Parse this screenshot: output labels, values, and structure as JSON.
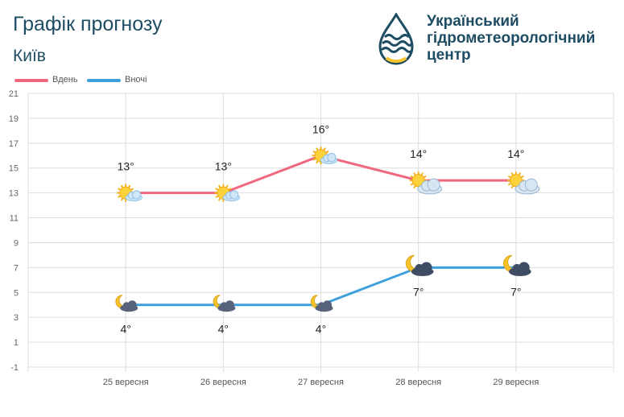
{
  "header": {
    "title": "Графік прогнозу",
    "city": "Київ"
  },
  "logo": {
    "line1": "Український",
    "line2": "гідрометеорологічний",
    "line3": "центр"
  },
  "colors": {
    "title": "#1e4d63",
    "day": "#f0687f",
    "night": "#3ea1de",
    "grid": "#dddddd",
    "logo_blue": "#1e4d63",
    "logo_yellow": "#f5c32c"
  },
  "chart_data": {
    "type": "line",
    "title": "Графік прогнозу",
    "xlabel": "",
    "ylabel": "",
    "categories": [
      "25 вересня",
      "26 вересня",
      "27 вересня",
      "28 вересня",
      "29 вересня"
    ],
    "ylim": [
      -1,
      21
    ],
    "yticks": [
      "21",
      "19",
      "17",
      "15",
      "13",
      "11",
      "9",
      "7",
      "5",
      "3",
      "1",
      "-1"
    ],
    "grid": true,
    "legend_position": "top-left",
    "series": [
      {
        "name": "Вдень",
        "values": [
          13,
          13,
          16,
          14,
          14
        ],
        "labels": [
          "13°",
          "13°",
          "16°",
          "14°",
          "14°"
        ],
        "icons": [
          "sun-cloud-icon",
          "sun-cloud-icon",
          "sun-cloud-icon",
          "sun-cloudy-icon",
          "sun-cloudy-icon"
        ]
      },
      {
        "name": "Вночі",
        "values": [
          4,
          4,
          4,
          7,
          7
        ],
        "labels": [
          "4°",
          "4°",
          "4°",
          "7°",
          "7°"
        ],
        "icons": [
          "moon-cloud-icon",
          "moon-cloud-icon",
          "moon-cloud-icon",
          "moon-darkcloud-icon",
          "moon-darkcloud-icon"
        ]
      }
    ]
  }
}
